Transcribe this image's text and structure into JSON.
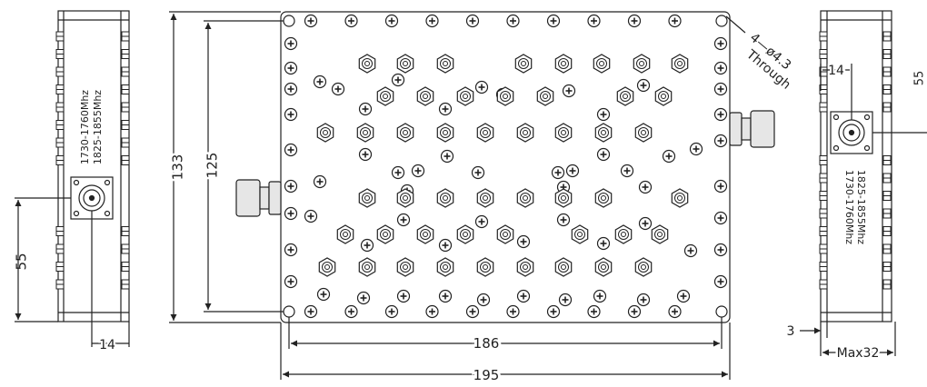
{
  "dimensions": {
    "height_overall": "133",
    "height_holes": "125",
    "width_holes": "186",
    "width_overall": "195",
    "left_port_offset": "55",
    "left_depth": "14",
    "right_port_offset": "14",
    "right_wall": "3",
    "right_max_depth": "Max32",
    "right_edge_partial": "55"
  },
  "hole_note": {
    "line1": "4—ø4.3",
    "line2": "Through"
  },
  "left_view": {
    "band1": "1730-1760Mhz",
    "band2": "1825-1855Mhz"
  },
  "right_view": {
    "band1": "1730-1760Mhz",
    "band2": "1825-1855Mhz"
  },
  "colors": {
    "line": "#222222",
    "fill": "#ffffff",
    "connector_fill": "#e6e6e6"
  }
}
